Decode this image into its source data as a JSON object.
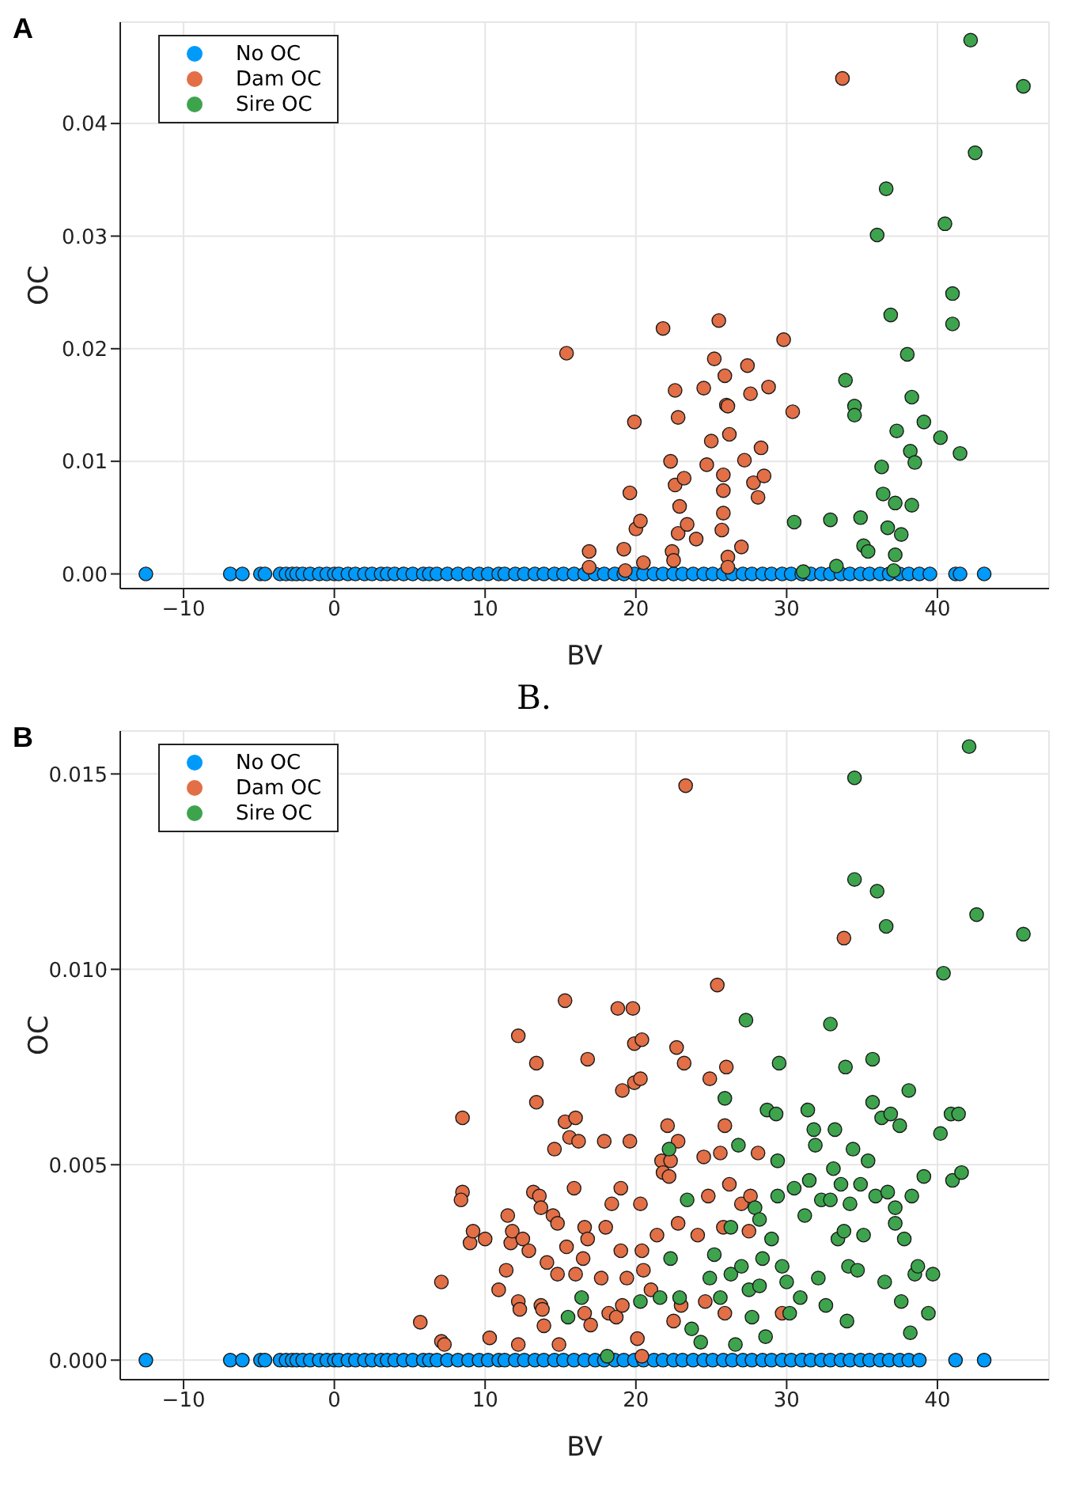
{
  "chart_data": [
    {
      "type": "scatter",
      "title": "A",
      "xlabel": "BV",
      "ylabel": "OC",
      "xlim": [
        -14.2,
        47.4
      ],
      "ylim": [
        -0.0013,
        0.049
      ],
      "xticks": [
        {
          "value": -10,
          "label": "−10"
        },
        0,
        10,
        20,
        30,
        40
      ],
      "yticks": [
        {
          "value": 0,
          "label": "0.00"
        },
        {
          "value": 0.01,
          "label": "0.01"
        },
        {
          "value": 0.02,
          "label": "0.02"
        },
        {
          "value": 0.03,
          "label": "0.03"
        },
        {
          "value": 0.04,
          "label": "0.04"
        }
      ],
      "grid": true,
      "legend": "top left",
      "marker": "circle",
      "series": [
        {
          "name": "No OC",
          "color": "#009afa",
          "x": [
            -12.5,
            -6.9,
            -6.1,
            -4.9,
            -4.6,
            -3.6,
            -3.2,
            -2.8,
            -2.5,
            -2.1,
            -1.6,
            -1.0,
            -0.5,
            0,
            0.3,
            0.9,
            1.4,
            2.0,
            2.5,
            3.1,
            3.5,
            4.0,
            4.6,
            5.2,
            5.9,
            6.3,
            6.8,
            7.5,
            8.2,
            8.9,
            9.6,
            10.2,
            10.9,
            11.3,
            12.0,
            12.6,
            13.3,
            13.9,
            14.6,
            15.2,
            15.9,
            16.6,
            17.3,
            17.9,
            18.6,
            19.2,
            19.9,
            20.5,
            21.2,
            21.8,
            22.5,
            23.1,
            23.8,
            24.5,
            25.1,
            25.8,
            26.4,
            27.1,
            27.7,
            28.4,
            29.0,
            29.7,
            30.3,
            31.0,
            31.6,
            32.3,
            32.9,
            33.6,
            34.2,
            34.9,
            35.5,
            36.2,
            36.8,
            37.5,
            38.1,
            38.8,
            39.5,
            41.2,
            41.5,
            43.1
          ],
          "values": [
            0,
            0,
            0,
            0,
            0,
            0,
            0,
            0,
            0,
            0,
            0,
            0,
            0,
            0,
            0,
            0,
            0,
            0,
            0,
            0,
            0,
            0,
            0,
            0,
            0,
            0,
            0,
            0,
            0,
            0,
            0,
            0,
            0,
            0,
            0,
            0,
            0,
            0,
            0,
            0,
            0,
            0,
            0,
            0,
            0,
            0,
            0,
            0,
            0,
            0,
            0,
            0,
            0,
            0,
            0,
            0,
            0,
            0,
            0,
            0,
            0,
            0,
            0,
            0,
            0,
            0,
            0,
            0,
            0,
            0,
            0,
            0,
            0,
            0,
            0,
            0,
            0,
            0,
            0,
            0
          ]
        },
        {
          "name": "Dam OC",
          "color": "#e26f46",
          "x": [
            15.4,
            16.9,
            16.9,
            19.2,
            19.3,
            19.6,
            19.9,
            20.0,
            20.3,
            20.5,
            21.8,
            22.3,
            22.4,
            22.5,
            22.6,
            22.6,
            22.8,
            22.8,
            22.9,
            23.2,
            23.4,
            24.0,
            24.5,
            24.7,
            25.0,
            25.2,
            25.5,
            25.7,
            25.8,
            25.8,
            25.8,
            25.9,
            26.0,
            26.1,
            26.2,
            26.1,
            26.1,
            27.0,
            27.2,
            27.4,
            27.6,
            27.8,
            28.1,
            28.3,
            28.5,
            28.8,
            29.8,
            30.4,
            33.7
          ],
          "values": [
            0.0196,
            0.002,
            0.0006,
            0.0022,
            0.0003,
            0.0072,
            0.0135,
            0.004,
            0.0047,
            0.001,
            0.0218,
            0.01,
            0.002,
            0.0012,
            0.0163,
            0.0079,
            0.0139,
            0.0036,
            0.006,
            0.0085,
            0.0044,
            0.0031,
            0.0165,
            0.0097,
            0.0118,
            0.0191,
            0.0225,
            0.0039,
            0.0074,
            0.0054,
            0.0088,
            0.0176,
            0.015,
            0.0149,
            0.0124,
            0.0015,
            0.0006,
            0.0024,
            0.0101,
            0.0185,
            0.016,
            0.0081,
            0.0068,
            0.0112,
            0.0087,
            0.0166,
            0.0208,
            0.0144,
            0.044
          ]
        },
        {
          "name": "Sire OC",
          "color": "#3da44d",
          "x": [
            30.5,
            31.1,
            32.9,
            33.3,
            33.9,
            34.5,
            34.5,
            34.9,
            35.1,
            35.4,
            36.0,
            36.3,
            36.4,
            36.6,
            36.7,
            36.9,
            37.2,
            37.2,
            37.3,
            37.1,
            37.6,
            38.0,
            38.2,
            38.3,
            38.3,
            38.5,
            39.1,
            40.2,
            40.5,
            41.0,
            41.0,
            41.5,
            42.2,
            42.5,
            45.7
          ],
          "values": [
            0.0046,
            0.0002,
            0.0048,
            0.0007,
            0.0172,
            0.0149,
            0.0141,
            0.005,
            0.0025,
            0.002,
            0.0301,
            0.0095,
            0.0071,
            0.0342,
            0.0041,
            0.023,
            0.0063,
            0.0017,
            0.0127,
            0.0003,
            0.0035,
            0.0195,
            0.0109,
            0.0157,
            0.0061,
            0.0099,
            0.0135,
            0.0121,
            0.0311,
            0.0249,
            0.0222,
            0.0107,
            0.0474,
            0.0374,
            0.0433
          ]
        }
      ]
    },
    {
      "type": "scatter",
      "title": "B",
      "annotations": [
        "B."
      ],
      "xlabel": "BV",
      "ylabel": "OC",
      "xlim": [
        -14.2,
        47.4
      ],
      "ylim": [
        -0.0005,
        0.0161
      ],
      "xticks": [
        {
          "value": -10,
          "label": "−10"
        },
        0,
        10,
        20,
        30,
        40
      ],
      "yticks": [
        {
          "value": 0,
          "label": "0.000"
        },
        {
          "value": 0.005,
          "label": "0.005"
        },
        {
          "value": 0.01,
          "label": "0.010"
        },
        {
          "value": 0.015,
          "label": "0.015"
        }
      ],
      "grid": true,
      "legend": "top left",
      "marker": "circle",
      "series": [
        {
          "name": "No OC",
          "color": "#009afa",
          "x": [
            -12.5,
            -6.9,
            -6.1,
            -4.9,
            -4.6,
            -3.6,
            -3.2,
            -2.8,
            -2.5,
            -2.1,
            -1.6,
            -1.0,
            -0.5,
            0,
            0.3,
            0.9,
            1.4,
            2.0,
            2.5,
            3.1,
            3.5,
            4.0,
            4.6,
            5.2,
            5.9,
            6.3,
            6.8,
            7.5,
            8.2,
            8.9,
            9.6,
            10.2,
            10.9,
            11.3,
            12.0,
            12.6,
            13.3,
            13.9,
            14.6,
            15.2,
            15.9,
            16.6,
            17.3,
            17.9,
            18.6,
            19.2,
            19.9,
            20.5,
            21.2,
            21.8,
            22.5,
            23.1,
            23.8,
            24.5,
            25.1,
            25.8,
            26.4,
            27.1,
            27.7,
            28.4,
            29.0,
            29.7,
            30.3,
            31.0,
            31.6,
            32.3,
            32.9,
            33.6,
            34.2,
            34.9,
            35.5,
            36.2,
            36.8,
            37.5,
            38.1,
            38.8,
            41.2,
            43.1
          ],
          "values": [
            0,
            0,
            0,
            0,
            0,
            0,
            0,
            0,
            0,
            0,
            0,
            0,
            0,
            0,
            0,
            0,
            0,
            0,
            0,
            0,
            0,
            0,
            0,
            0,
            0,
            0,
            0,
            0,
            0,
            0,
            0,
            0,
            0,
            0,
            0,
            0,
            0,
            0,
            0,
            0,
            0,
            0,
            0,
            0,
            0,
            0,
            0,
            0,
            0,
            0,
            0,
            0,
            0,
            0,
            0,
            0,
            0,
            0,
            0,
            0,
            0,
            0,
            0,
            0,
            0,
            0,
            0,
            0,
            0,
            0,
            0,
            0,
            0,
            0,
            0,
            0,
            0,
            0
          ]
        },
        {
          "name": "Dam OC",
          "color": "#e26f46",
          "x": [
            5.7,
            7.1,
            7.1,
            7.3,
            8.5,
            8.5,
            8.4,
            9.0,
            9.2,
            10.0,
            10.3,
            10.9,
            11.4,
            11.5,
            11.7,
            11.8,
            12.2,
            12.2,
            12.3,
            12.2,
            12.5,
            12.9,
            13.2,
            13.4,
            13.4,
            13.6,
            13.7,
            13.7,
            13.8,
            13.9,
            14.1,
            14.5,
            14.6,
            14.8,
            14.8,
            14.9,
            15.3,
            15.3,
            15.4,
            15.6,
            15.9,
            16.0,
            16.0,
            16.2,
            16.5,
            16.6,
            16.8,
            16.8,
            16.6,
            17.0,
            17.7,
            17.9,
            18.0,
            18.2,
            18.4,
            18.7,
            18.8,
            19.0,
            19.0,
            19.1,
            19.1,
            19.4,
            19.6,
            19.8,
            19.9,
            19.9,
            20.3,
            20.4,
            20.3,
            20.4,
            20.5,
            20.1,
            20.4,
            21.0,
            21.4,
            21.7,
            21.8,
            22.1,
            22.2,
            22.3,
            22.5,
            22.7,
            22.8,
            22.8,
            23.0,
            23.2,
            23.3,
            24.1,
            24.5,
            24.6,
            24.8,
            24.9,
            25.4,
            25.6,
            25.8,
            25.9,
            26.0,
            26.2,
            25.9,
            27.0,
            27.5,
            27.6,
            28.1,
            29.7,
            33.8
          ],
          "values": [
            0.00097,
            0.002,
            0.00048,
            0.0004,
            0.0062,
            0.0043,
            0.0041,
            0.003,
            0.0033,
            0.0031,
            0.00057,
            0.0018,
            0.0023,
            0.0037,
            0.003,
            0.0033,
            0.0083,
            0.0015,
            0.0013,
            0.0004,
            0.0031,
            0.0028,
            0.0043,
            0.0076,
            0.0066,
            0.0042,
            0.0039,
            0.0014,
            0.0013,
            0.00088,
            0.0025,
            0.0037,
            0.0054,
            0.0035,
            0.0022,
            0.0004,
            0.0092,
            0.0061,
            0.0029,
            0.0057,
            0.0044,
            0.0062,
            0.0022,
            0.0056,
            0.0026,
            0.0034,
            0.0077,
            0.0031,
            0.0012,
            0.0009,
            0.0021,
            0.0056,
            0.0034,
            0.0012,
            0.004,
            0.0011,
            0.009,
            0.0044,
            0.0028,
            0.0069,
            0.0014,
            0.0021,
            0.0056,
            0.009,
            0.0081,
            0.0071,
            0.0072,
            0.0082,
            0.004,
            0.0028,
            0.0023,
            0.00055,
            0.0001,
            0.0018,
            0.0032,
            0.0051,
            0.0048,
            0.006,
            0.0047,
            0.0051,
            0.001,
            0.008,
            0.0035,
            0.0056,
            0.0014,
            0.0076,
            0.0147,
            0.0032,
            0.0052,
            0.0015,
            0.0042,
            0.0072,
            0.0096,
            0.0053,
            0.0034,
            0.006,
            0.0075,
            0.0045,
            0.0012,
            0.004,
            0.0033,
            0.0042,
            0.0053,
            0.0012,
            0.0108
          ]
        },
        {
          "name": "Sire OC",
          "color": "#3da44d",
          "x": [
            15.5,
            16.4,
            18.1,
            20.3,
            21.6,
            22.2,
            22.3,
            22.9,
            23.4,
            23.7,
            24.3,
            24.9,
            25.2,
            25.6,
            25.9,
            26.3,
            26.3,
            26.6,
            26.8,
            27.0,
            27.3,
            27.5,
            27.7,
            27.9,
            28.2,
            28.2,
            28.4,
            28.6,
            28.7,
            29.0,
            29.3,
            29.4,
            29.4,
            29.5,
            29.7,
            30.0,
            30.2,
            30.5,
            30.9,
            31.2,
            31.4,
            31.5,
            31.8,
            31.9,
            32.1,
            32.3,
            32.6,
            32.9,
            32.9,
            33.1,
            33.2,
            33.4,
            33.6,
            33.8,
            33.9,
            34.0,
            34.1,
            34.2,
            34.4,
            34.5,
            34.5,
            34.7,
            34.9,
            35.1,
            35.4,
            35.7,
            35.7,
            35.9,
            36.0,
            36.3,
            36.5,
            36.6,
            36.7,
            36.9,
            37.2,
            37.2,
            37.5,
            37.6,
            37.8,
            38.1,
            38.2,
            38.3,
            38.5,
            38.7,
            39.1,
            39.4,
            39.7,
            40.2,
            40.4,
            40.9,
            41.0,
            41.4,
            41.6,
            42.1,
            42.6,
            45.7
          ],
          "values": [
            0.0011,
            0.0016,
            0.0001,
            0.0015,
            0.0016,
            0.0054,
            0.0026,
            0.0016,
            0.0041,
            0.0008,
            0.00046,
            0.0021,
            0.0027,
            0.0016,
            0.0067,
            0.0034,
            0.0022,
            0.0004,
            0.0055,
            0.0024,
            0.0087,
            0.0018,
            0.0011,
            0.0039,
            0.0036,
            0.0019,
            0.0026,
            0.0006,
            0.0064,
            0.0031,
            0.0063,
            0.0042,
            0.0051,
            0.0076,
            0.0024,
            0.002,
            0.0012,
            0.0044,
            0.0016,
            0.0037,
            0.0064,
            0.0046,
            0.0059,
            0.0055,
            0.0021,
            0.0041,
            0.0014,
            0.0041,
            0.0086,
            0.0049,
            0.0059,
            0.0031,
            0.0045,
            0.0033,
            0.0075,
            0.001,
            0.0024,
            0.004,
            0.0054,
            0.0123,
            0.0149,
            0.0023,
            0.0045,
            0.0032,
            0.0051,
            0.0077,
            0.0066,
            0.0042,
            0.012,
            0.0062,
            0.002,
            0.0111,
            0.0043,
            0.0063,
            0.0039,
            0.0035,
            0.006,
            0.0015,
            0.0031,
            0.0069,
            0.0007,
            0.0042,
            0.0022,
            0.0024,
            0.0047,
            0.0012,
            0.0022,
            0.0058,
            0.0099,
            0.0063,
            0.0046,
            0.0063,
            0.0048,
            0.0157,
            0.0114,
            0.0109
          ]
        }
      ]
    }
  ]
}
